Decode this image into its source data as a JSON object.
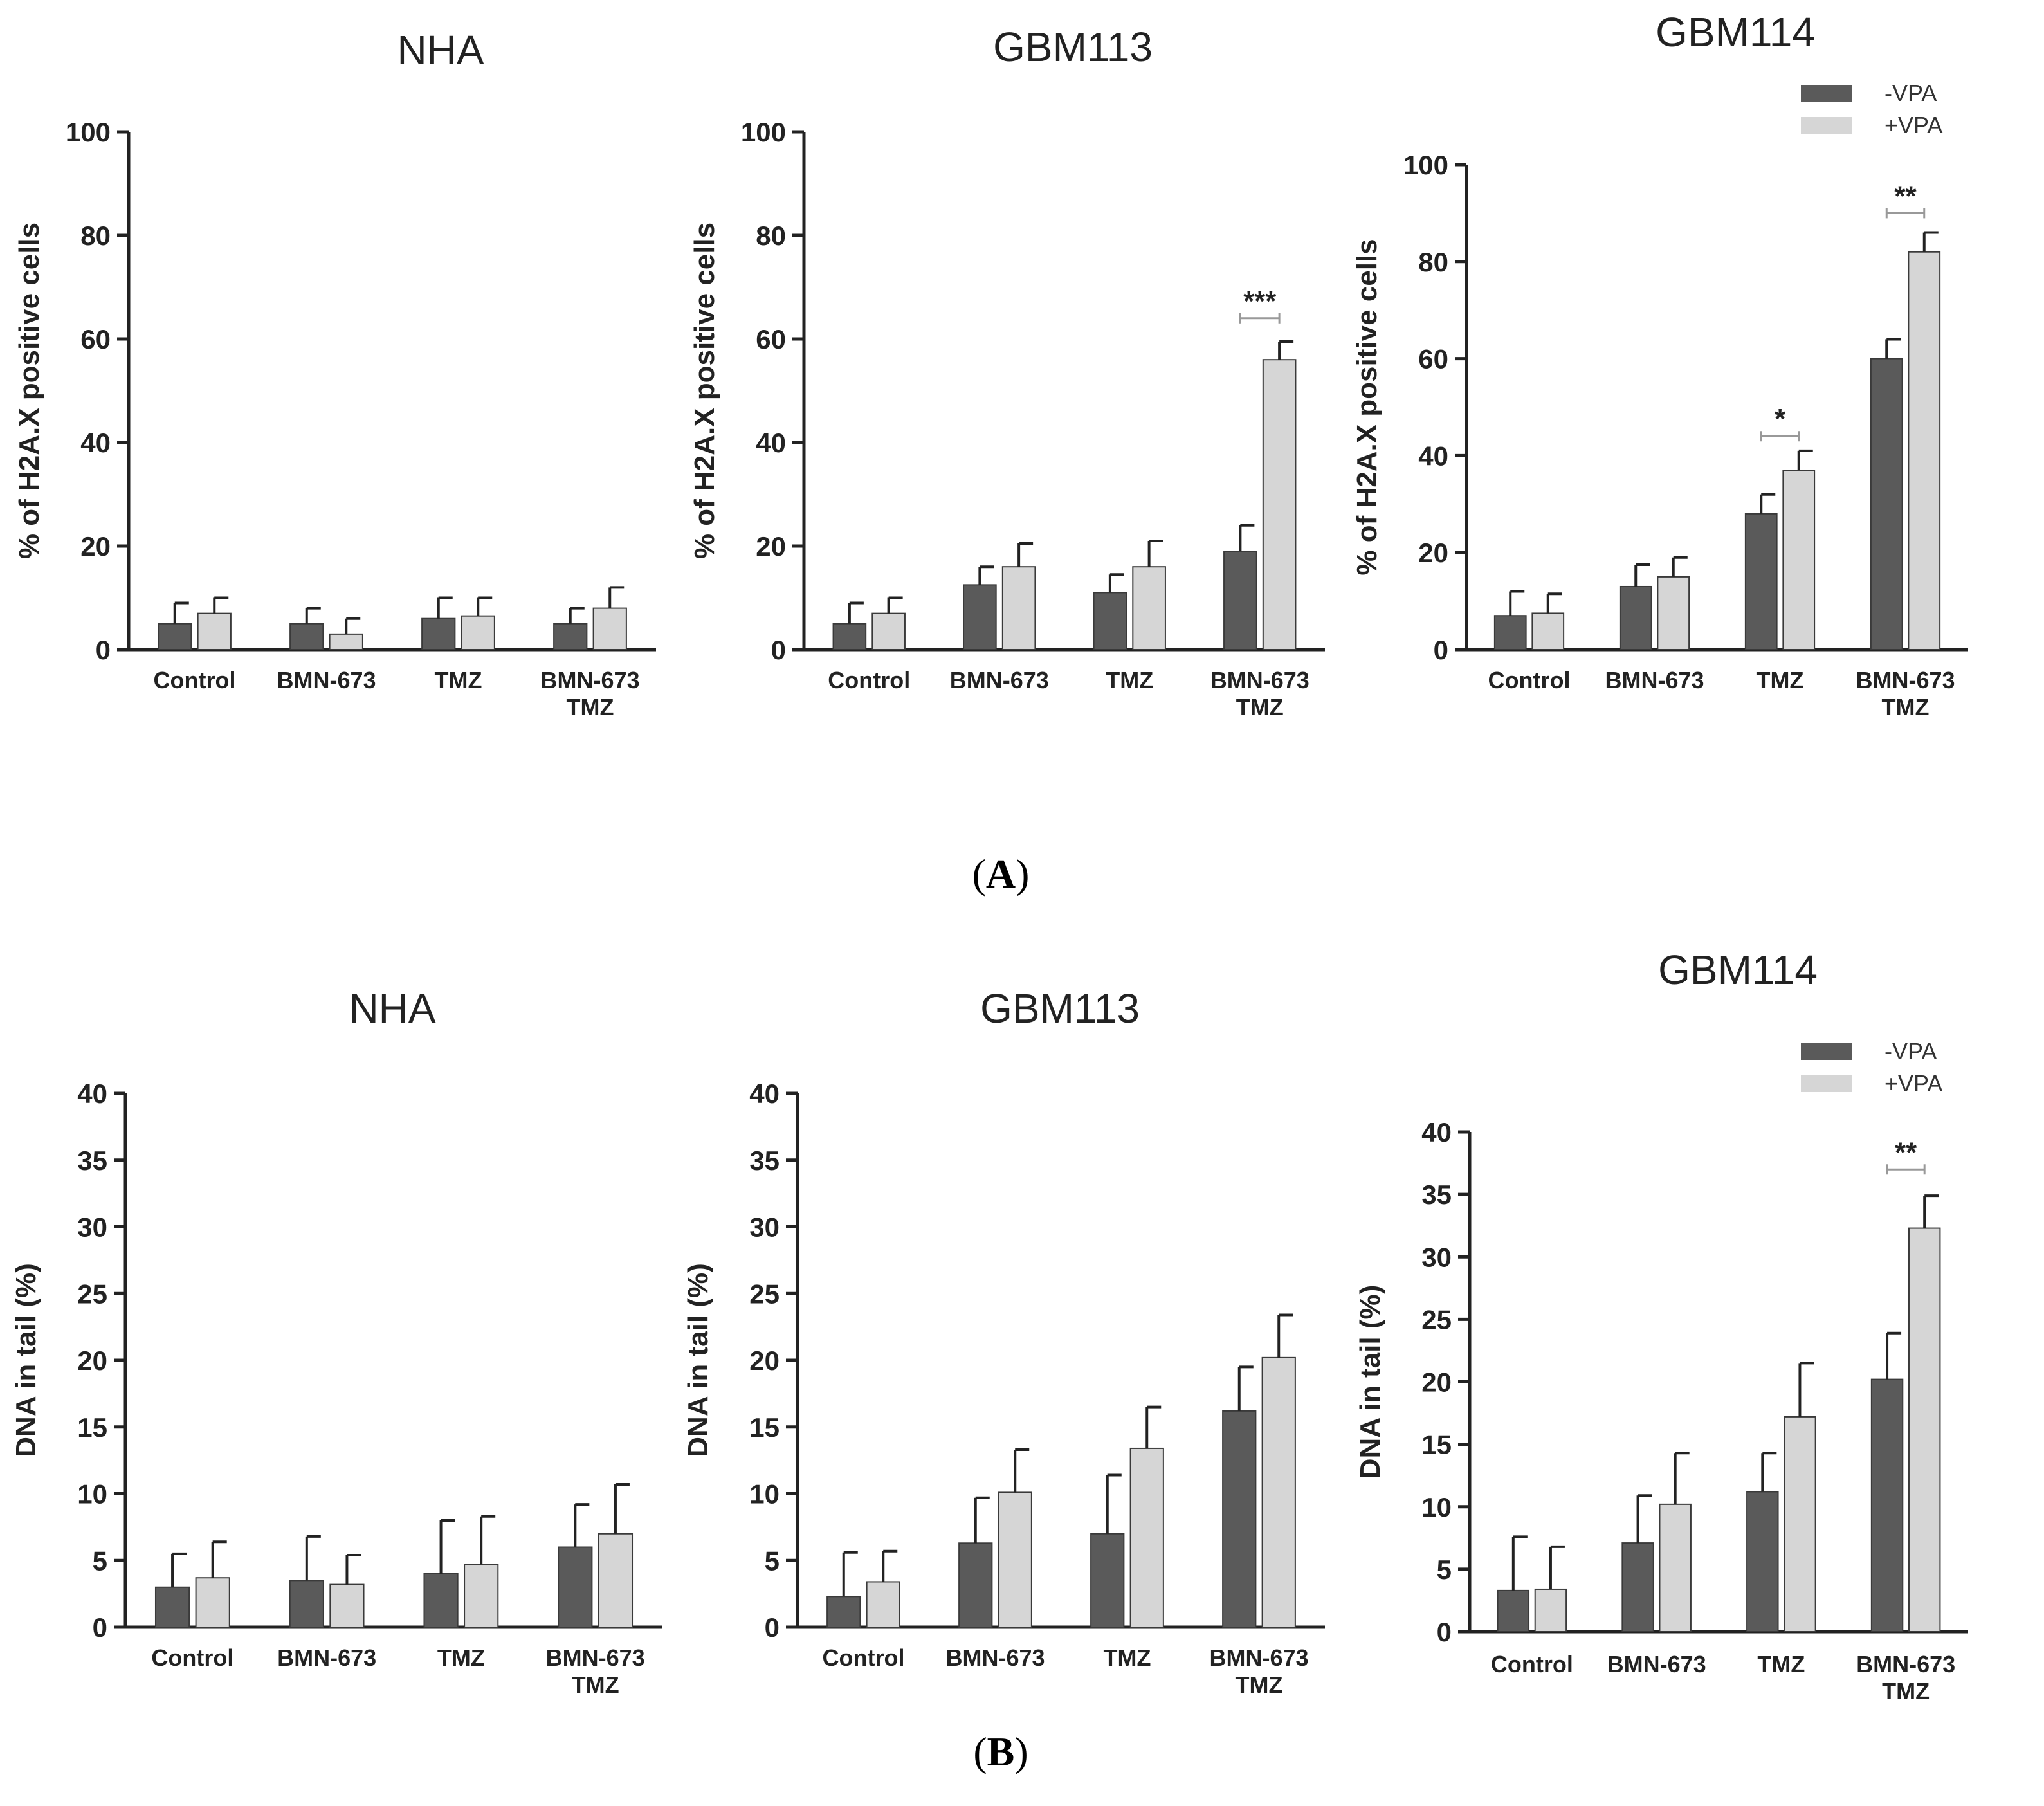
{
  "colors": {
    "neg": "#5a5a5a",
    "pos": "#d6d6d6",
    "axis": "#222222",
    "sig_line": "#999999"
  },
  "sections": [
    {
      "label_open": "(",
      "label_letter": "A",
      "label_close": ")"
    },
    {
      "label_open": "(",
      "label_letter": "B",
      "label_close": ")"
    }
  ],
  "legend": {
    "neg": "-VPA",
    "pos": "+VPA"
  },
  "chart_data": [
    {
      "type": "bar",
      "title": "NHA",
      "ylabel": "% of H2A.X positive cells",
      "ylim": [
        0,
        100
      ],
      "yticks": [
        0,
        20,
        40,
        60,
        80,
        100
      ],
      "categories": [
        [
          "Control"
        ],
        [
          "BMN-673"
        ],
        [
          "TMZ"
        ],
        [
          "BMN-673",
          "TMZ"
        ]
      ],
      "series": [
        {
          "name": "-VPA",
          "values": [
            5,
            5,
            6,
            5
          ],
          "errors": [
            4,
            3,
            4,
            3
          ]
        },
        {
          "name": "+VPA",
          "values": [
            7,
            3,
            6.5,
            8
          ],
          "errors": [
            3,
            3,
            3.5,
            4
          ]
        }
      ],
      "significance": []
    },
    {
      "type": "bar",
      "title": "GBM113",
      "ylabel": "% of H2A.X positive cells",
      "ylim": [
        0,
        100
      ],
      "yticks": [
        0,
        20,
        40,
        60,
        80,
        100
      ],
      "categories": [
        [
          "Control"
        ],
        [
          "BMN-673"
        ],
        [
          "TMZ"
        ],
        [
          "BMN-673",
          "TMZ"
        ]
      ],
      "series": [
        {
          "name": "-VPA",
          "values": [
            5,
            12.5,
            11,
            19
          ],
          "errors": [
            4,
            3.5,
            3.5,
            5
          ]
        },
        {
          "name": "+VPA",
          "values": [
            7,
            16,
            16,
            56
          ],
          "errors": [
            3,
            4.5,
            5,
            3.5
          ]
        }
      ],
      "significance": [
        {
          "category": 3,
          "label": "***",
          "y": 64
        }
      ]
    },
    {
      "type": "bar",
      "title": "GBM114",
      "ylabel": "% of H2A.X positive cells",
      "ylim": [
        0,
        100
      ],
      "yticks": [
        0,
        20,
        40,
        60,
        80,
        100
      ],
      "categories": [
        [
          "Control"
        ],
        [
          "BMN-673"
        ],
        [
          "TMZ"
        ],
        [
          "BMN-673",
          "TMZ"
        ]
      ],
      "series": [
        {
          "name": "-VPA",
          "values": [
            7,
            13,
            28,
            60
          ],
          "errors": [
            5,
            4.5,
            4,
            4
          ]
        },
        {
          "name": "+VPA",
          "values": [
            7.5,
            15,
            37,
            82
          ],
          "errors": [
            4,
            4,
            4,
            4
          ]
        }
      ],
      "significance": [
        {
          "category": 2,
          "label": "*",
          "y": 44
        },
        {
          "category": 3,
          "label": "**",
          "y": 90
        }
      ]
    },
    {
      "type": "bar",
      "title": "NHA",
      "ylabel": "DNA in tail (%)",
      "ylim": [
        0,
        40
      ],
      "yticks": [
        0,
        5,
        10,
        15,
        20,
        25,
        30,
        35,
        40
      ],
      "categories": [
        [
          "Control"
        ],
        [
          "BMN-673"
        ],
        [
          "TMZ"
        ],
        [
          "BMN-673",
          "TMZ"
        ]
      ],
      "series": [
        {
          "name": "-VPA",
          "values": [
            3,
            3.5,
            4,
            6
          ],
          "errors": [
            2.5,
            3.3,
            4,
            3.2
          ]
        },
        {
          "name": "+VPA",
          "values": [
            3.7,
            3.2,
            4.7,
            7
          ],
          "errors": [
            2.7,
            2.2,
            3.6,
            3.7
          ]
        }
      ],
      "significance": []
    },
    {
      "type": "bar",
      "title": "GBM113",
      "ylabel": "DNA in tail (%)",
      "ylim": [
        0,
        40
      ],
      "yticks": [
        0,
        5,
        10,
        15,
        20,
        25,
        30,
        35,
        40
      ],
      "categories": [
        [
          "Control"
        ],
        [
          "BMN-673"
        ],
        [
          "TMZ"
        ],
        [
          "BMN-673",
          "TMZ"
        ]
      ],
      "series": [
        {
          "name": "-VPA",
          "values": [
            2.3,
            6.3,
            7,
            16.2
          ],
          "errors": [
            3.3,
            3.4,
            4.4,
            3.3
          ]
        },
        {
          "name": "+VPA",
          "values": [
            3.4,
            10.1,
            13.4,
            20.2
          ],
          "errors": [
            2.3,
            3.2,
            3.1,
            3.2
          ]
        }
      ],
      "significance": []
    },
    {
      "type": "bar",
      "title": "GBM114",
      "ylabel": "DNA in tail (%)",
      "ylim": [
        0,
        40
      ],
      "yticks": [
        0,
        5,
        10,
        15,
        20,
        25,
        30,
        35,
        40
      ],
      "categories": [
        [
          "Control"
        ],
        [
          "BMN-673"
        ],
        [
          "TMZ"
        ],
        [
          "BMN-673",
          "TMZ"
        ]
      ],
      "series": [
        {
          "name": "-VPA",
          "values": [
            3.3,
            7.1,
            11.2,
            20.2
          ],
          "errors": [
            4.3,
            3.8,
            3.1,
            3.7
          ]
        },
        {
          "name": "+VPA",
          "values": [
            3.4,
            10.2,
            17.2,
            32.3
          ],
          "errors": [
            3.4,
            4.1,
            4.3,
            2.6
          ]
        }
      ],
      "significance": [
        {
          "category": 3,
          "label": "**",
          "y": 37
        }
      ]
    }
  ]
}
